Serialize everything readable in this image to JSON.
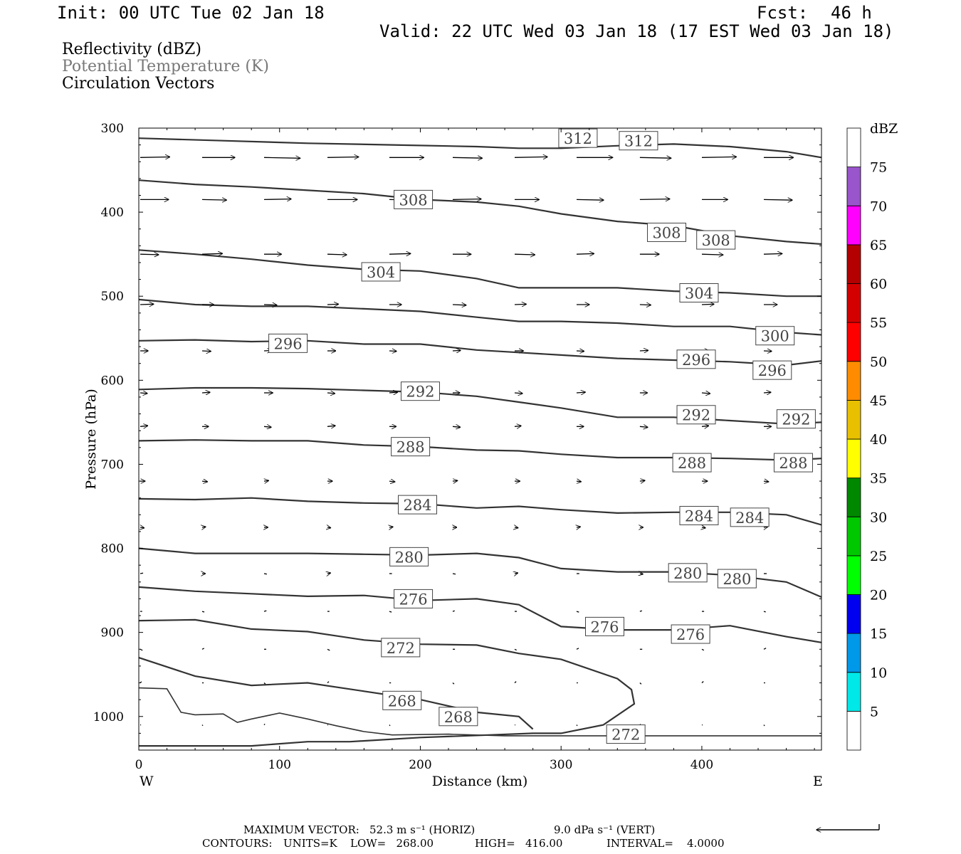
{
  "header": {
    "init": "Init: 00 UTC Tue 02 Jan 18",
    "fcst_label": "Fcst:",
    "fcst_value": "46 h",
    "valid": "Valid: 22 UTC Wed 03 Jan 18 (17 EST Wed 03 Jan 18)",
    "fields": [
      "Reflectivity (dBZ)",
      "Potential Temperature (K)",
      "Circulation Vectors"
    ]
  },
  "chart_data": {
    "type": "cross-section contour",
    "x_axis": {
      "label": "Distance (km)",
      "ticks": [
        0,
        100,
        200,
        300,
        400
      ],
      "range": [
        0,
        485
      ],
      "left_end": "W",
      "right_end": "E"
    },
    "y_axis": {
      "label": "Pressure (hPa)",
      "ticks": [
        300,
        400,
        500,
        600,
        700,
        800,
        900,
        1000
      ],
      "range": [
        300,
        1040
      ],
      "inverted": true
    },
    "colorbar": {
      "unit": "dBZ",
      "levels": [
        5,
        10,
        15,
        20,
        25,
        30,
        35,
        40,
        45,
        50,
        55,
        60,
        65,
        70,
        75
      ],
      "colors": [
        "#ffffff",
        "#00e8e8",
        "#0098e8",
        "#0000f0",
        "#00ff00",
        "#00c800",
        "#008800",
        "#ffff00",
        "#e8c000",
        "#ff8c00",
        "#ff0000",
        "#d40000",
        "#b40000",
        "#ff00ff",
        "#9955cc",
        "#ffffff"
      ]
    },
    "theta_contours": [
      {
        "value": 312,
        "x": [
          0,
          60,
          120,
          180,
          240,
          270,
          300,
          340,
          380,
          420,
          460,
          485
        ],
        "p": [
          312,
          315,
          318,
          320,
          322,
          324,
          324,
          321,
          319,
          322,
          328,
          335
        ],
        "labels": [
          [
            312,
            312
          ],
          [
            355,
            315
          ]
        ]
      },
      {
        "value": 308,
        "x": [
          0,
          40,
          80,
          120,
          160,
          200,
          240,
          270,
          300,
          340,
          380,
          420,
          460,
          485
        ],
        "p": [
          362,
          367,
          370,
          374,
          378,
          385,
          388,
          393,
          402,
          411,
          416,
          428,
          435,
          438
        ],
        "labels": [
          [
            195,
            385
          ],
          [
            375,
            424
          ],
          [
            410,
            433
          ]
        ]
      },
      {
        "value": 304,
        "x": [
          0,
          40,
          80,
          120,
          160,
          200,
          240,
          270,
          300,
          340,
          380,
          420,
          460,
          485
        ],
        "p": [
          445,
          450,
          456,
          463,
          468,
          470,
          479,
          490,
          490,
          490,
          494,
          496,
          500,
          500
        ],
        "labels": [
          [
            172,
            471
          ],
          [
            398,
            496
          ]
        ]
      },
      {
        "value": 300,
        "x": [
          0,
          40,
          80,
          120,
          160,
          200,
          240,
          270,
          300,
          340,
          380,
          420,
          460,
          485
        ],
        "p": [
          504,
          510,
          512,
          512,
          515,
          518,
          525,
          530,
          530,
          532,
          536,
          536,
          543,
          546
        ],
        "labels": [
          [
            452,
            547
          ]
        ]
      },
      {
        "value": 296,
        "x": [
          0,
          40,
          80,
          120,
          160,
          200,
          240,
          270,
          300,
          340,
          380,
          420,
          460,
          485
        ],
        "p": [
          553,
          552,
          554,
          553,
          557,
          557,
          564,
          567,
          570,
          574,
          576,
          578,
          582,
          577
        ],
        "labels": [
          [
            106,
            556
          ],
          [
            396,
            575
          ],
          [
            450,
            588
          ]
        ]
      },
      {
        "value": 292,
        "x": [
          0,
          40,
          80,
          120,
          160,
          200,
          240,
          270,
          300,
          340,
          380,
          420,
          460,
          485
        ],
        "p": [
          611,
          609,
          609,
          610,
          612,
          614,
          619,
          626,
          633,
          644,
          644,
          648,
          652,
          650
        ],
        "labels": [
          [
            200,
            613
          ],
          [
            396,
            641
          ],
          [
            467,
            646
          ]
        ]
      },
      {
        "value": 288,
        "x": [
          0,
          40,
          80,
          120,
          160,
          200,
          240,
          270,
          300,
          340,
          380,
          420,
          460,
          485
        ],
        "p": [
          672,
          671,
          672,
          672,
          677,
          679,
          683,
          684,
          688,
          692,
          692,
          693,
          695,
          693
        ],
        "labels": [
          [
            193,
            679
          ],
          [
            393,
            698
          ],
          [
            465,
            698
          ]
        ]
      },
      {
        "value": 284,
        "x": [
          0,
          40,
          80,
          120,
          160,
          200,
          240,
          270,
          300,
          340,
          380,
          420,
          460,
          485
        ],
        "p": [
          741,
          742,
          740,
          744,
          746,
          747,
          752,
          750,
          754,
          758,
          757,
          757,
          760,
          772
        ],
        "labels": [
          [
            198,
            748
          ],
          [
            398,
            761
          ],
          [
            434,
            763
          ]
        ]
      },
      {
        "value": 280,
        "x": [
          0,
          40,
          80,
          120,
          160,
          200,
          240,
          270,
          300,
          340,
          380,
          420,
          460,
          485
        ],
        "p": [
          800,
          806,
          806,
          806,
          807,
          808,
          806,
          811,
          824,
          828,
          828,
          832,
          840,
          858
        ],
        "labels": [
          [
            192,
            810
          ],
          [
            390,
            829
          ],
          [
            425,
            836
          ]
        ]
      },
      {
        "value": 276,
        "x": [
          0,
          40,
          80,
          120,
          160,
          200,
          240,
          270,
          300,
          340,
          380,
          420,
          460,
          485
        ],
        "p": [
          846,
          851,
          854,
          857,
          856,
          862,
          860,
          867,
          893,
          897,
          897,
          892,
          905,
          912
        ],
        "labels": [
          [
            195,
            860
          ],
          [
            331,
            893
          ],
          [
            392,
            902
          ]
        ]
      },
      {
        "value": 272,
        "x": [
          0,
          40,
          80,
          120,
          160,
          200,
          240,
          270,
          300,
          340,
          350,
          352,
          330,
          300,
          280,
          250,
          200,
          150,
          120,
          80,
          40,
          0
        ],
        "p": [
          886,
          885,
          896,
          899,
          909,
          914,
          915,
          925,
          932,
          955,
          968,
          985,
          1010,
          1020,
          1020,
          1022,
          1025,
          1030,
          1030,
          1035,
          1035,
          1035
        ],
        "labels": [
          [
            186,
            918
          ],
          [
            346,
            1021
          ]
        ]
      },
      {
        "value": 268,
        "x": [
          0,
          40,
          80,
          120,
          160,
          200,
          240,
          270,
          280
        ],
        "p": [
          930,
          952,
          963,
          960,
          970,
          980,
          995,
          1000,
          1015
        ],
        "labels": [
          [
            187,
            981
          ],
          [
            227,
            1000
          ]
        ]
      },
      {
        "value": "surface",
        "x": [
          0,
          20,
          30,
          40,
          60,
          70,
          80,
          100,
          120,
          140,
          160,
          180,
          220,
          260,
          300,
          340,
          380,
          420,
          460,
          485
        ],
        "p": [
          966,
          967,
          995,
          998,
          997,
          1007,
          1003,
          996,
          1003,
          1011,
          1018,
          1022,
          1021,
          1023,
          1023,
          1023,
          1023,
          1023,
          1023,
          1023
        ],
        "labels": []
      }
    ],
    "vector_rows": {
      "p": [
        335,
        385,
        450,
        510,
        565,
        615,
        655,
        720,
        775,
        830,
        875,
        920,
        960,
        1010
      ],
      "x": [
        0,
        44,
        88,
        133,
        177,
        222,
        266,
        310,
        355,
        399,
        443
      ],
      "u_scale_px": [
        46,
        38,
        27,
        17,
        11,
        11,
        10,
        7,
        5,
        4,
        3,
        3,
        2,
        1
      ],
      "w_tilt": [
        0.02,
        0.02,
        0.03,
        0.04,
        0.05,
        0.08,
        0.1,
        0.12,
        0.15,
        0.2,
        0.3,
        0.5,
        0.9,
        1.2
      ]
    },
    "reference_vector_direction": "left"
  },
  "footer": {
    "max_vector_label": "MAXIMUM VECTOR:",
    "max_vector_horiz": "52.3 m s⁻¹ (HORIZ)",
    "max_vector_vert": "9.0 dPa s⁻¹ (VERT)",
    "contours_label": "CONTOURS:",
    "units": "UNITS=K",
    "low": "LOW=   268.00",
    "high": "HIGH=   416.00",
    "interval": "INTERVAL=    4.0000"
  }
}
